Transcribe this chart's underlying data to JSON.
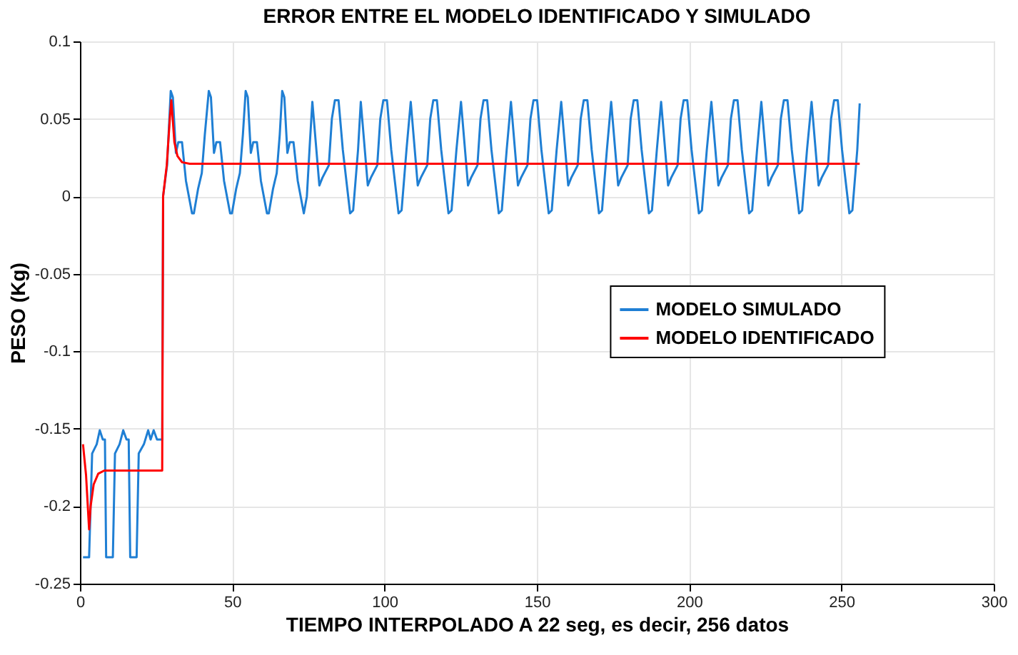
{
  "chart_data": {
    "type": "line",
    "title": "ERROR ENTRE EL MODELO IDENTIFICADO Y SIMULADO",
    "xlabel": "TIEMPO INTERPOLADO A 22 seg, es decir, 256 datos",
    "ylabel": "PESO (Kg)",
    "xlim": [
      0,
      300
    ],
    "xticks": [
      0,
      50,
      100,
      150,
      200,
      250,
      300
    ],
    "ylim": [
      -0.25,
      0.1
    ],
    "yticks": [
      -0.25,
      -0.2,
      -0.15,
      -0.1,
      -0.05,
      0,
      0.05,
      0.1
    ],
    "grid": true,
    "legend": "right",
    "line_style": "solid",
    "marker": "none",
    "series": [
      {
        "name": "MODELO SIMULADO",
        "color": "#1f7fd4",
        "x": [
          1,
          3,
          4,
          5.5,
          6.5,
          7.5,
          8.2,
          8.6,
          10.8,
          11.5,
          13,
          14.2,
          15.3,
          16,
          16.5,
          18.6,
          19.3,
          21,
          22.4,
          23.2,
          24.2,
          25.3,
          27,
          27.3,
          28.2,
          28.6,
          29.8,
          30.5,
          31.5,
          32.3,
          33.5,
          34.8,
          36.8,
          37.4,
          38.8,
          40.0,
          41.0,
          42.3,
          43.0,
          44.0,
          44.8,
          46.0,
          47.3,
          49.3,
          49.9,
          51.3,
          52.5,
          53.5,
          54.4,
          55.1,
          56.1,
          56.9,
          58.1,
          59.4,
          61.4,
          62.0,
          63.4,
          64.6,
          65.6,
          66.4,
          67.1,
          68.1,
          68.9,
          70.1,
          71.5,
          73.5,
          74.5,
          75.5,
          76.3,
          78.6,
          79.6,
          81.7,
          82.7,
          83.7,
          84.9,
          86.3,
          88.7,
          89.7,
          91.3,
          92.2,
          94.5,
          95.5,
          97.6,
          98.6,
          99.6,
          100.8,
          102.2,
          104.6,
          105.6,
          107.2,
          108.6,
          110.9,
          111.9,
          114.0,
          115.0,
          116.0,
          117.2,
          118.6,
          121.0,
          122.0,
          123.6,
          125.1,
          127.4,
          128.4,
          130.5,
          131.5,
          132.5,
          133.7,
          135.1,
          137.5,
          138.5,
          140.1,
          141.5,
          143.8,
          144.8,
          146.9,
          147.9,
          148.9,
          150.1,
          151.5,
          153.9,
          154.9,
          156.5,
          158.0,
          160.3,
          161.3,
          163.4,
          164.4,
          165.4,
          166.6,
          168.0,
          170.4,
          171.4,
          173.0,
          174.4,
          176.7,
          177.7,
          179.8,
          180.8,
          181.8,
          183.0,
          184.4,
          186.8,
          187.8,
          189.4,
          190.8,
          193.1,
          194.1,
          196.2,
          197.2,
          198.2,
          199.4,
          200.8,
          203.2,
          204.2,
          205.8,
          207.3,
          209.6,
          210.6,
          212.7,
          213.7,
          214.7,
          215.9,
          217.3,
          219.7,
          220.7,
          222.3,
          223.7,
          226.0,
          227.0,
          229.1,
          230.1,
          231.1,
          232.3,
          233.7,
          236.1,
          237.1,
          238.7,
          240.2,
          242.5,
          243.5,
          245.6,
          246.6,
          247.6,
          248.8,
          250.2,
          252.6,
          253.6,
          255.2,
          256.0
        ],
        "values": [
          -0.233,
          -0.233,
          -0.166,
          -0.16,
          -0.151,
          -0.157,
          -0.157,
          -0.233,
          -0.233,
          -0.166,
          -0.16,
          -0.151,
          -0.157,
          -0.157,
          -0.233,
          -0.233,
          -0.166,
          -0.16,
          -0.151,
          -0.157,
          -0.151,
          -0.157,
          -0.157,
          0.0,
          0.014,
          0.02,
          0.068,
          0.064,
          0.028,
          0.035,
          0.035,
          0.01,
          -0.011,
          -0.011,
          0.005,
          0.015,
          0.04,
          0.068,
          0.064,
          0.028,
          0.035,
          0.035,
          0.01,
          -0.011,
          -0.011,
          0.005,
          0.015,
          0.04,
          0.068,
          0.064,
          0.028,
          0.035,
          0.035,
          0.01,
          -0.011,
          -0.011,
          0.005,
          0.015,
          0.04,
          0.068,
          0.064,
          0.028,
          0.035,
          0.035,
          0.01,
          -0.011,
          0.0,
          0.035,
          0.061,
          0.007,
          0.012,
          0.02,
          0.05,
          0.062,
          0.062,
          0.03,
          -0.011,
          -0.009,
          0.03,
          0.061,
          0.007,
          0.012,
          0.02,
          0.05,
          0.062,
          0.062,
          0.03,
          -0.011,
          -0.009,
          0.03,
          0.061,
          0.007,
          0.012,
          0.02,
          0.05,
          0.062,
          0.062,
          0.03,
          -0.011,
          -0.009,
          0.03,
          0.061,
          0.007,
          0.012,
          0.02,
          0.05,
          0.062,
          0.062,
          0.03,
          -0.011,
          -0.009,
          0.03,
          0.061,
          0.007,
          0.012,
          0.02,
          0.05,
          0.062,
          0.062,
          0.03,
          -0.011,
          -0.009,
          0.03,
          0.061,
          0.007,
          0.012,
          0.02,
          0.05,
          0.062,
          0.062,
          0.03,
          -0.011,
          -0.009,
          0.03,
          0.061,
          0.007,
          0.012,
          0.02,
          0.05,
          0.062,
          0.062,
          0.03,
          -0.011,
          -0.009,
          0.03,
          0.061,
          0.007,
          0.012,
          0.02,
          0.05,
          0.062,
          0.062,
          0.03,
          -0.011,
          -0.009,
          0.03,
          0.061,
          0.007,
          0.012,
          0.02,
          0.05,
          0.062,
          0.062,
          0.03,
          -0.011,
          -0.009,
          0.03,
          0.061,
          0.007,
          0.012,
          0.02,
          0.05,
          0.062,
          0.062,
          0.03,
          -0.011,
          -0.009,
          0.03,
          0.061,
          0.007,
          0.012,
          0.02,
          0.05,
          0.062,
          0.062,
          0.03,
          -0.011,
          -0.009,
          0.03,
          0.06
        ]
      },
      {
        "name": "MODELO IDENTIFICADO",
        "color": "#ff0000",
        "x": [
          1,
          2,
          3,
          3.5,
          4.5,
          6,
          8,
          27,
          27.3,
          28.5,
          29.5,
          30,
          31,
          32,
          33.5,
          36,
          256
        ],
        "values": [
          -0.16,
          -0.18,
          -0.215,
          -0.2,
          -0.186,
          -0.179,
          -0.177,
          -0.177,
          0.0,
          0.02,
          0.05,
          0.062,
          0.035,
          0.026,
          0.022,
          0.021,
          0.021
        ]
      }
    ]
  }
}
